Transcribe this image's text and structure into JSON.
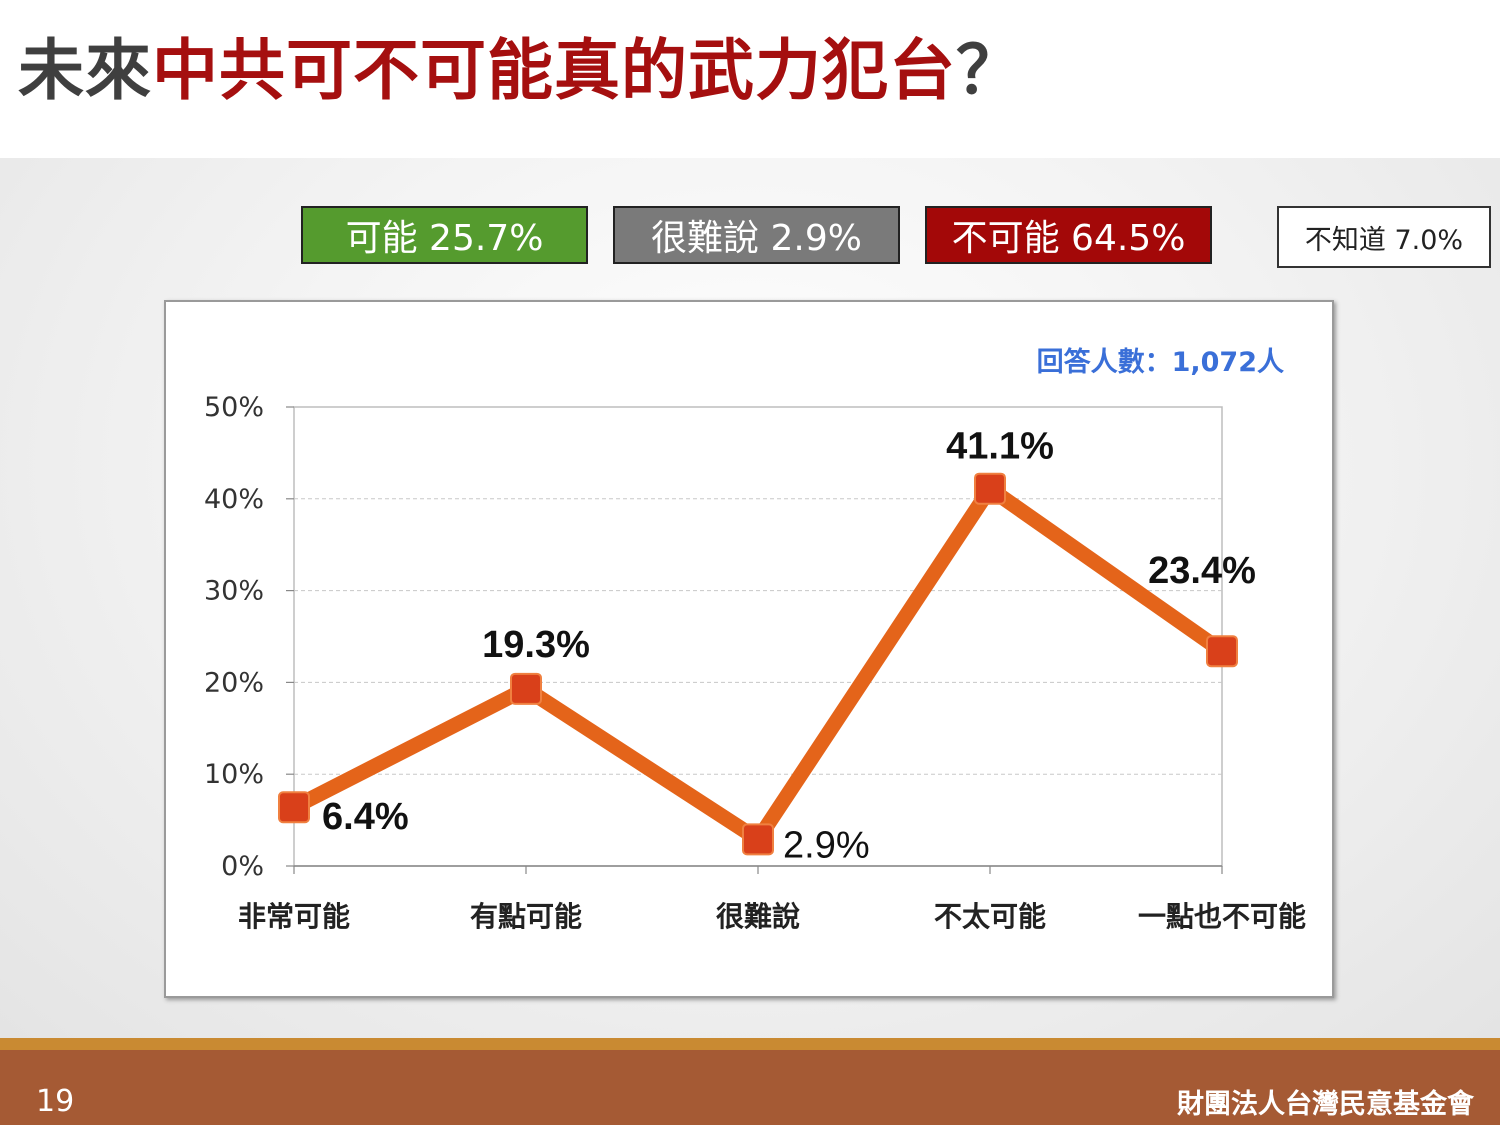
{
  "title": {
    "part1": "未來",
    "part2": "中共可不可能真的武力犯台",
    "part3": "？"
  },
  "summary": {
    "possible": "可能 25.7%",
    "hard_to_say": "很難說 2.9%",
    "impossible": "不可能 64.5%",
    "unknown": "不知道 7.0%"
  },
  "colors": {
    "possible": "#559b2e",
    "hard_to_say": "#7a7a7a",
    "impossible": "#a30808",
    "line": "#e4641a",
    "marker": "#d9401a",
    "footer": "#a55a34",
    "footer_stripe": "#c98a32",
    "sample_note": "#3a6fd8"
  },
  "sample_note": "回答人數：1,072人",
  "chart_data": {
    "type": "line",
    "categories": [
      "非常可能",
      "有點可能",
      "很難說",
      "不太可能",
      "一點也不可能"
    ],
    "values": [
      6.4,
      19.3,
      2.9,
      41.1,
      23.4
    ],
    "data_labels": [
      "6.4%",
      "19.3%",
      "2.9%",
      "41.1%",
      "23.4%"
    ],
    "ylim": [
      0,
      50
    ],
    "yticks": [
      0,
      10,
      20,
      30,
      40,
      50
    ],
    "ytick_labels": [
      "0%",
      "10%",
      "20%",
      "30%",
      "40%",
      "50%"
    ],
    "grid": true,
    "title": "",
    "xlabel": "",
    "ylabel": ""
  },
  "footer": {
    "page": "19",
    "org": "財團法人台灣民意基金會"
  }
}
